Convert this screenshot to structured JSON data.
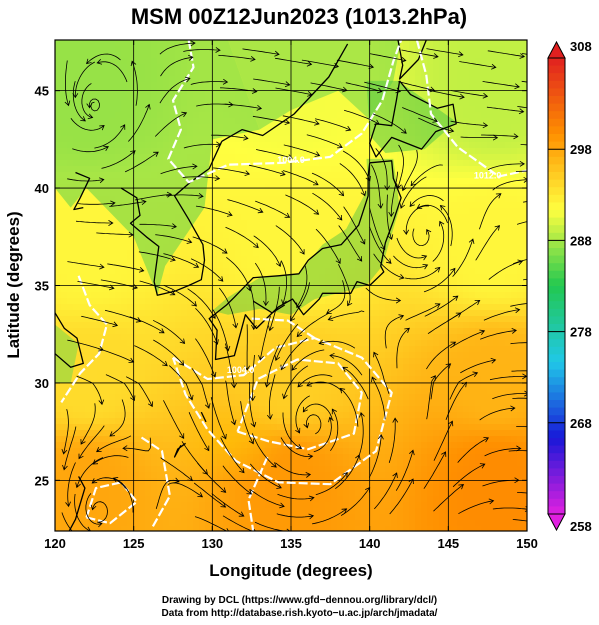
{
  "title": "MSM 00Z12Jun2023 (1013.2hPa)",
  "xlabel": "Longitude (degrees)",
  "ylabel": "Latitude  (degrees)",
  "x_ticks": [
    {
      "value": 120,
      "label": "120"
    },
    {
      "value": 125,
      "label": "125"
    },
    {
      "value": 130,
      "label": "130"
    },
    {
      "value": 135,
      "label": "135"
    },
    {
      "value": 140,
      "label": "140"
    },
    {
      "value": 145,
      "label": "145"
    },
    {
      "value": 150,
      "label": "150"
    }
  ],
  "y_ticks": [
    {
      "value": 25,
      "label": "25"
    },
    {
      "value": 30,
      "label": "30"
    },
    {
      "value": 35,
      "label": "35"
    },
    {
      "value": 40,
      "label": "40"
    },
    {
      "value": 45,
      "label": "45"
    }
  ],
  "colorbar": {
    "min": 258,
    "max": 308,
    "ticks": [
      {
        "value": 258,
        "label": "258"
      },
      {
        "value": 268,
        "label": "268"
      },
      {
        "value": 278,
        "label": "278"
      },
      {
        "value": 288,
        "label": "288"
      },
      {
        "value": 298,
        "label": "298"
      },
      {
        "value": 308,
        "label": "308"
      }
    ]
  },
  "contour_labels": [
    {
      "text": "1004.0",
      "lon": 135.0,
      "lat": 41.3
    },
    {
      "text": "1012.0",
      "lon": 147.5,
      "lat": 40.5
    },
    {
      "text": "1004.0",
      "lon": 131.8,
      "lat": 30.5
    }
  ],
  "credits": [
    "Drawing by DCL (https://www.gfd−dennou.org/library/dcl/)",
    "Data from http://database.rish.kyoto−u.ac.jp/arch/jmadata/"
  ],
  "chart_data": {
    "type": "heatmap",
    "title": "MSM 00Z12Jun2023 (1013.2hPa)",
    "xlabel": "Longitude (degrees)",
    "ylabel": "Latitude  (degrees)",
    "xlim": [
      120,
      150
    ],
    "ylim": [
      22.4,
      47.6
    ],
    "grid": true,
    "colorbar_range": [
      258,
      308
    ],
    "colorbar_ticks": [
      258,
      268,
      278,
      288,
      298,
      308
    ],
    "background_field_samples": [
      {
        "lon": 122,
        "lat": 45,
        "value": 290
      },
      {
        "lon": 135,
        "lat": 45,
        "value": 291
      },
      {
        "lon": 148,
        "lat": 45,
        "value": 289
      },
      {
        "lon": 122,
        "lat": 37,
        "value": 292
      },
      {
        "lon": 135,
        "lat": 37,
        "value": 292
      },
      {
        "lon": 148,
        "lat": 37,
        "value": 292
      },
      {
        "lon": 122,
        "lat": 30,
        "value": 294
      },
      {
        "lon": 135,
        "lat": 30,
        "value": 295
      },
      {
        "lon": 148,
        "lat": 30,
        "value": 297
      },
      {
        "lon": 122,
        "lat": 25,
        "value": 298
      },
      {
        "lon": 135,
        "lat": 25,
        "value": 299
      },
      {
        "lon": 148,
        "lat": 25,
        "value": 300
      }
    ],
    "vortex_centers": [
      {
        "lon": 122.5,
        "lat": 44.2
      },
      {
        "lon": 143.3,
        "lat": 37.5
      },
      {
        "lon": 136.4,
        "lat": 27.9
      },
      {
        "lon": 122.8,
        "lat": 23.4
      }
    ]
  },
  "colors": {
    "colorbar_stops": [
      "#e020e0",
      "#1818d8",
      "#20c8e8",
      "#22c850",
      "#ffff40",
      "#ff9000",
      "#e02020"
    ],
    "isobar": "#ffffff",
    "streamline": "#000000",
    "coast": "#000000"
  }
}
